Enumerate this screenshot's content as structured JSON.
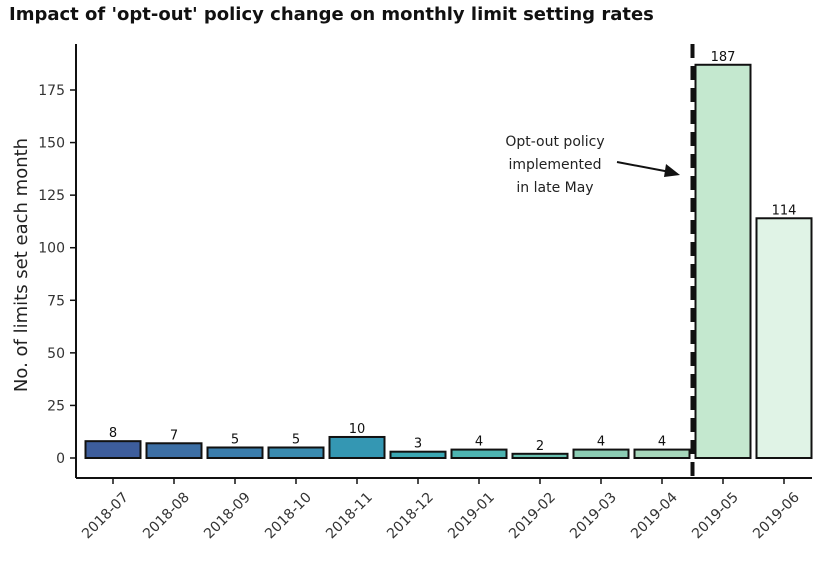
{
  "chart_data": {
    "type": "bar",
    "title": "Impact of 'opt-out' policy change on monthly limit setting rates",
    "xlabel": "",
    "ylabel": "No. of limits set each month",
    "categories": [
      "2018-07",
      "2018-08",
      "2018-09",
      "2018-10",
      "2018-11",
      "2018-12",
      "2019-01",
      "2019-02",
      "2019-03",
      "2019-04",
      "2019-05",
      "2019-06"
    ],
    "values": [
      8,
      7,
      5,
      5,
      10,
      3,
      4,
      2,
      4,
      4,
      187,
      114
    ],
    "colors": [
      "#3d5d9c",
      "#3d6fa5",
      "#3b7dac",
      "#3a8bb0",
      "#3497b3",
      "#3ba7b3",
      "#4db4b1",
      "#68c0b0",
      "#8bccb3",
      "#a6d7bb",
      "#c4e8cf",
      "#e0f3e6"
    ],
    "ylim": [
      0,
      195
    ],
    "yticks": [
      0,
      25,
      50,
      75,
      100,
      125,
      150,
      175
    ],
    "grid": false,
    "vline": {
      "between": [
        "2019-04",
        "2019-05"
      ],
      "style": "dashed"
    },
    "annotation": {
      "lines": [
        "Opt-out policy",
        "implemented",
        "in late May"
      ]
    }
  }
}
